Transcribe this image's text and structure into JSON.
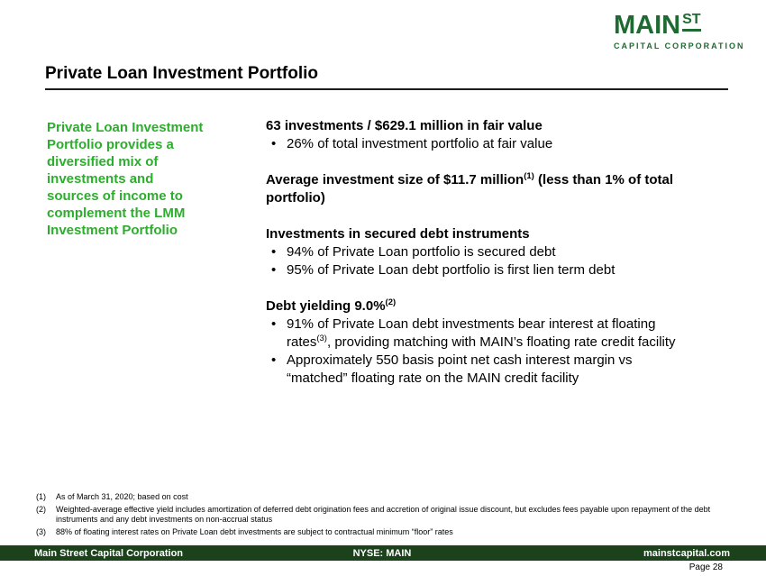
{
  "colors": {
    "brand_green": "#1e6a32",
    "accent_green": "#2dad2d",
    "footer_bg": "#1b421b"
  },
  "logo": {
    "main": "MAIN",
    "st": "ST",
    "subtitle": "CAPITAL CORPORATION"
  },
  "page_title": "Private Loan Investment Portfolio",
  "sidebar": {
    "lines": [
      "Private Loan Investment",
      "Portfolio provides a",
      "diversified mix of",
      "investments and",
      "sources of income to",
      "complement the LMM",
      "Investment Portfolio"
    ]
  },
  "content": {
    "s1": {
      "heading": "63 investments / $629.1 million in fair value",
      "b1": "26% of total investment portfolio at fair value"
    },
    "s2": {
      "h_line1_pre": "Average investment size of $11.7 million",
      "h_sup": "(1)",
      "h_line1_post": " (less than 1% of total",
      "h_line2": "portfolio)"
    },
    "s3": {
      "heading": "Investments in secured debt instruments",
      "b1": "94% of Private Loan portfolio is secured debt",
      "b2": "95% of Private Loan debt portfolio is first lien term debt"
    },
    "s4": {
      "h_pre": "Debt yielding 9.0%",
      "h_sup": "(2)",
      "b1_line1": "91% of Private Loan debt investments bear interest at floating",
      "b1_line2_pre": "rates",
      "b1_sup": "(3)",
      "b1_line2_post": ", providing matching with MAIN’s floating rate credit facility",
      "b2_line1": "Approximately 550 basis point net cash interest margin vs",
      "b2_line2": "“matched” floating rate on the MAIN credit facility"
    },
    "bullet_char": "•"
  },
  "footnotes": [
    {
      "num": "(1)",
      "text": "As of March 31, 2020; based on cost"
    },
    {
      "num": "(2)",
      "text": "Weighted-average effective yield includes amortization of deferred debt origination fees and accretion of original issue discount, but excludes fees payable upon repayment of the debt instruments and any debt investments on non-accrual status"
    },
    {
      "num": "(3)",
      "text": "88% of floating interest rates on Private Loan debt investments are subject to contractual minimum “floor” rates"
    }
  ],
  "footer": {
    "company": "Main Street Capital Corporation",
    "ticker": "NYSE: MAIN",
    "website": "mainstcapital.com",
    "page": "Page 28"
  }
}
